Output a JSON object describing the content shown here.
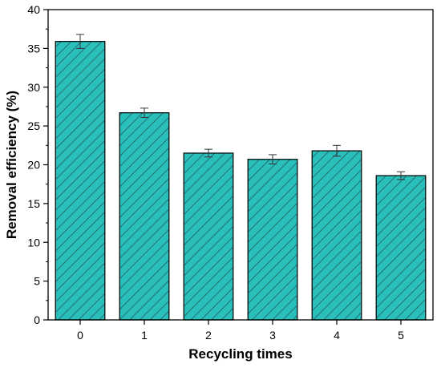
{
  "chart_data": {
    "type": "bar",
    "title": "",
    "xlabel": "Recycling times",
    "ylabel": "Removal efficiency (%)",
    "categories": [
      "0",
      "1",
      "2",
      "3",
      "4",
      "5"
    ],
    "values": [
      35.9,
      26.7,
      21.5,
      20.7,
      21.8,
      18.6
    ],
    "errors": [
      0.9,
      0.6,
      0.5,
      0.6,
      0.7,
      0.5
    ],
    "ylim": [
      0,
      40
    ],
    "yticks": [
      0,
      5,
      10,
      15,
      20,
      25,
      30,
      35,
      40
    ],
    "bar_fill": "#2bbfbc",
    "bar_hatch": "diagonal",
    "grid": false,
    "legend": "none"
  }
}
